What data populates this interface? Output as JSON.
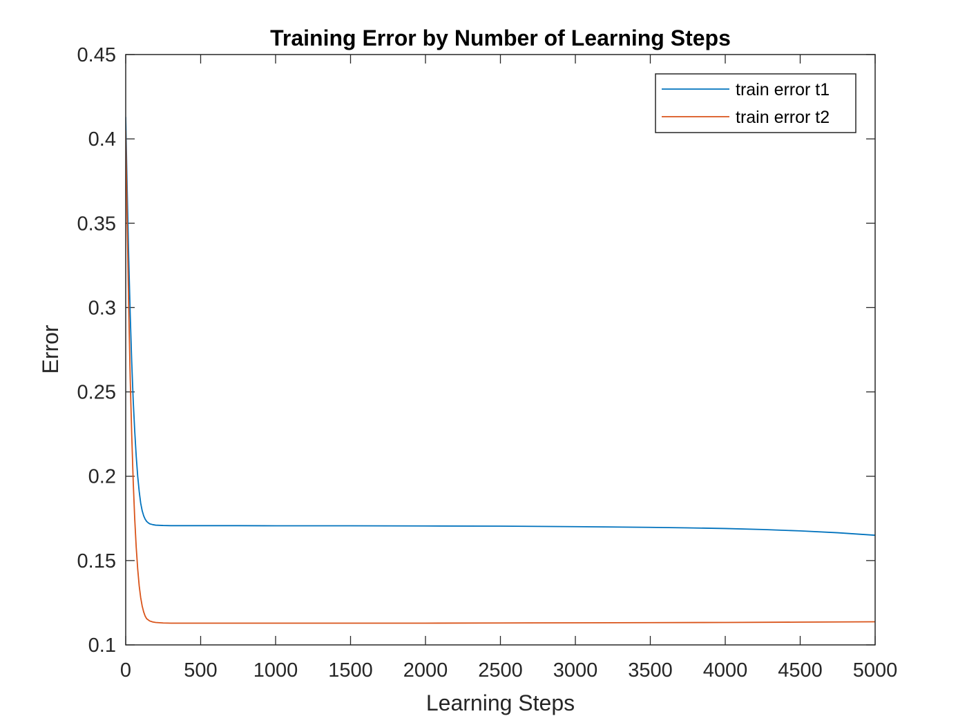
{
  "chart_data": {
    "type": "line",
    "title": "Training Error by Number of Learning Steps",
    "xlabel": "Learning Steps",
    "ylabel": "Error",
    "xlim": [
      0,
      5000
    ],
    "ylim": [
      0.1,
      0.45
    ],
    "xticks": [
      0,
      500,
      1000,
      1500,
      2000,
      2500,
      3000,
      3500,
      4000,
      4500,
      5000
    ],
    "xtick_labels": [
      "0",
      "500",
      "1000",
      "1500",
      "2000",
      "2500",
      "3000",
      "3500",
      "4000",
      "4500",
      "5000"
    ],
    "yticks": [
      0.1,
      0.15,
      0.2,
      0.25,
      0.3,
      0.35,
      0.4,
      0.45
    ],
    "ytick_labels": [
      "0.1",
      "0.15",
      "0.2",
      "0.25",
      "0.3",
      "0.35",
      "0.4",
      "0.45"
    ],
    "grid": false,
    "legend_position": "top-right",
    "series": [
      {
        "name": "train error t1",
        "color": "#0072BD",
        "x": [
          0,
          10,
          20,
          30,
          40,
          50,
          60,
          70,
          80,
          90,
          100,
          110,
          120,
          130,
          140,
          150,
          160,
          180,
          200,
          250,
          300,
          400,
          500,
          750,
          1000,
          1500,
          2000,
          2500,
          3000,
          3500,
          3750,
          4000,
          4250,
          4500,
          4750,
          5000
        ],
        "y": [
          0.413,
          0.37,
          0.33,
          0.296,
          0.268,
          0.245,
          0.227,
          0.212,
          0.2,
          0.191,
          0.184,
          0.1795,
          0.1765,
          0.1745,
          0.1732,
          0.1724,
          0.1718,
          0.1713,
          0.171,
          0.1708,
          0.1707,
          0.1707,
          0.1707,
          0.1707,
          0.1706,
          0.1706,
          0.1705,
          0.1704,
          0.1701,
          0.1697,
          0.1694,
          0.169,
          0.1684,
          0.1676,
          0.1665,
          0.165
        ]
      },
      {
        "name": "train error t2",
        "color": "#D95319",
        "x": [
          0,
          10,
          20,
          30,
          40,
          50,
          60,
          70,
          80,
          90,
          100,
          110,
          120,
          130,
          140,
          160,
          180,
          200,
          250,
          300,
          500,
          1000,
          1500,
          2000,
          2500,
          3000,
          3500,
          4000,
          4500,
          5000
        ],
        "y": [
          0.405,
          0.35,
          0.3,
          0.258,
          0.225,
          0.197,
          0.175,
          0.158,
          0.145,
          0.135,
          0.128,
          0.123,
          0.1195,
          0.117,
          0.1155,
          0.1142,
          0.1136,
          0.1133,
          0.113,
          0.1129,
          0.1129,
          0.1129,
          0.1129,
          0.1129,
          0.113,
          0.1131,
          0.1132,
          0.1133,
          0.1135,
          0.1137
        ]
      }
    ]
  }
}
